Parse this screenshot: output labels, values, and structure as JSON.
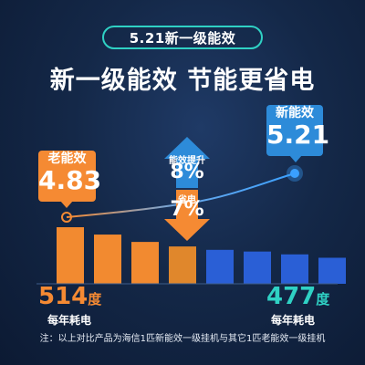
{
  "badge": "5.21新一级能效",
  "headline": "新一级能效 节能更省电",
  "old_callout": {
    "label": "老能效",
    "value": "4.83"
  },
  "new_callout": {
    "label": "新能效",
    "value": "5.21"
  },
  "efficiency_up": {
    "label": "能效提升",
    "value": "8%"
  },
  "power_down": {
    "label": "省电",
    "value": "7%"
  },
  "old_consumption": {
    "value": "514",
    "unit": "度",
    "caption": "每年耗电"
  },
  "new_consumption": {
    "value": "477",
    "unit": "度",
    "caption": "每年耗电"
  },
  "footnote": "注：以上对比产品为海信1匹新能效一级挂机与其它1匹老能效一级挂机",
  "colors": {
    "orange": "#f58a33",
    "teal": "#2fd1c4",
    "blue": "#2d8bd9",
    "bar_old": "#f28a30",
    "bar_new": "#2a5fd6"
  },
  "chart_data": {
    "type": "bar",
    "values_relative": [
      1.0,
      0.87,
      0.74,
      0.66,
      0.6,
      0.57,
      0.52,
      0.46
    ],
    "bar_colors": [
      "#f28a30",
      "#f28a30",
      "#f28a30",
      "#e0872c",
      "#2a5fd6",
      "#2a5fd6",
      "#2a5fd6",
      "#2a5fd6"
    ],
    "trend_line": {
      "from": 4.83,
      "to": 5.21
    }
  }
}
